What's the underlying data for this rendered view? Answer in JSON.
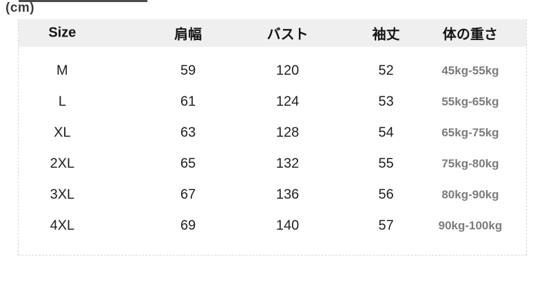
{
  "unit_label": "(cm)",
  "colors": {
    "header_background": "#efefef",
    "border_dashed": "#d5d5d5",
    "text_primary": "#1e1e1e",
    "text_weight_muted": "#7b7b7b",
    "top_strip": "#4b4b4b"
  },
  "chart_data": {
    "type": "table",
    "unit": "(cm)",
    "columns": [
      "Size",
      "肩幅",
      "バスト",
      "袖丈",
      "体の重さ"
    ],
    "rows": [
      {
        "size": "M",
        "shoulder_width": 59,
        "bust": 120,
        "sleeve_length": 52,
        "weight_range": "45kg-55kg"
      },
      {
        "size": "L",
        "shoulder_width": 61,
        "bust": 124,
        "sleeve_length": 53,
        "weight_range": "55kg-65kg"
      },
      {
        "size": "XL",
        "shoulder_width": 63,
        "bust": 128,
        "sleeve_length": 54,
        "weight_range": "65kg-75kg"
      },
      {
        "size": "2XL",
        "shoulder_width": 65,
        "bust": 132,
        "sleeve_length": 55,
        "weight_range": "75kg-80kg"
      },
      {
        "size": "3XL",
        "shoulder_width": 67,
        "bust": 136,
        "sleeve_length": 56,
        "weight_range": "80kg-90kg"
      },
      {
        "size": "4XL",
        "shoulder_width": 69,
        "bust": 140,
        "sleeve_length": 57,
        "weight_range": "90kg-100kg"
      }
    ]
  }
}
